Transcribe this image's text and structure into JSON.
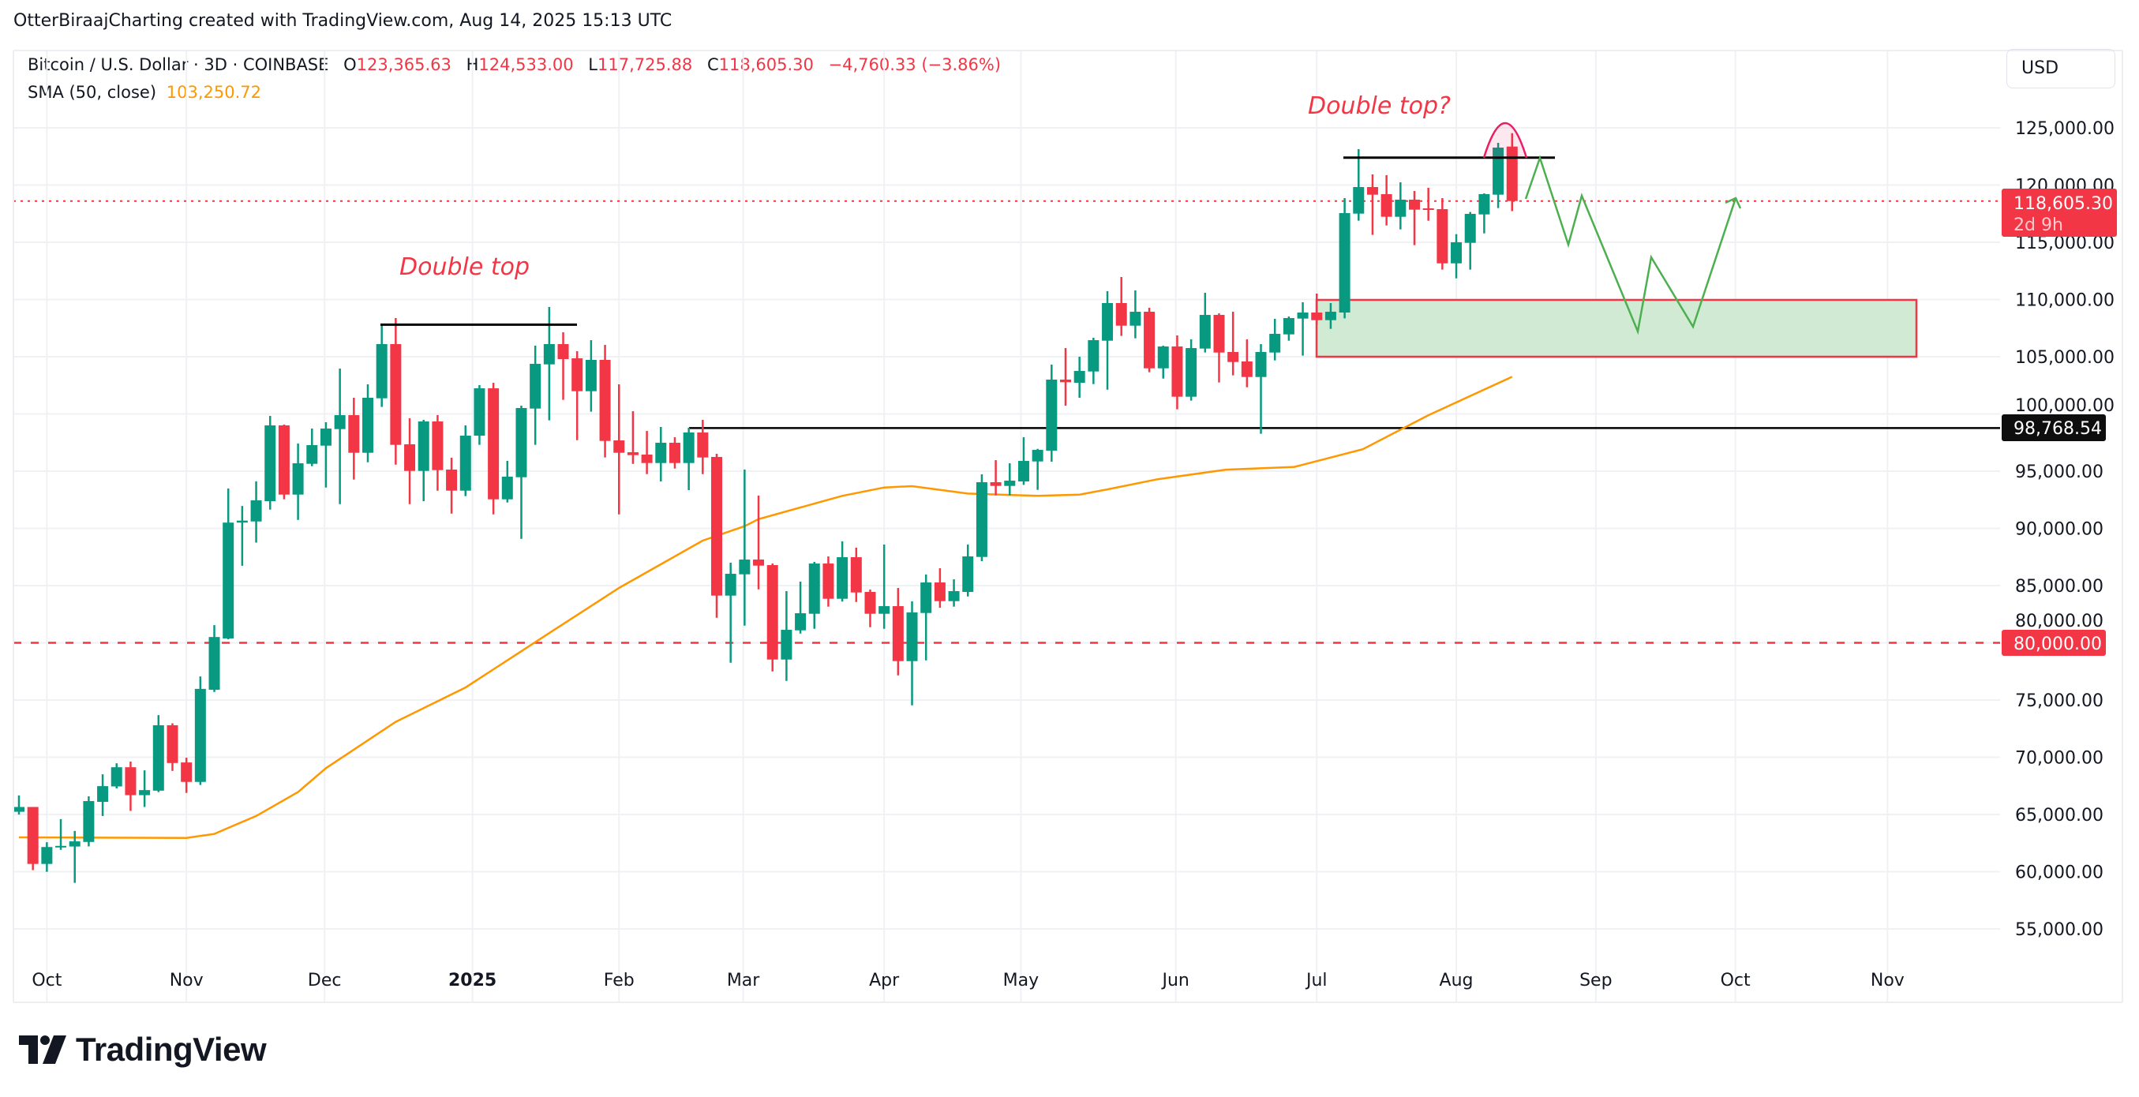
{
  "header": {
    "title": "OtterBiraajCharting created with TradingView.com, Aug 14, 2025 15:13 UTC",
    "symbol": "Bitcoin / U.S. Dollar · 3D · COINBASE",
    "open_label": "O",
    "open": "123,365.63",
    "high_label": "H",
    "high": "124,533.00",
    "low_label": "L",
    "low": "117,725.88",
    "close_label": "C",
    "close": "118,605.30",
    "change": "−4,760.33 (−3.86%)",
    "indicator": "SMA (50, close)",
    "indicator_value": "103,250.72"
  },
  "currency_button": "USD",
  "price_tags": {
    "current_price": "118,605.30",
    "countdown": "2d 9h",
    "support_level": "98,768.54",
    "level_80k": "80,000.00"
  },
  "annotations": {
    "left_label": "Double top",
    "right_label": "Double top?"
  },
  "logo": "TradingView",
  "colors": {
    "up": "#089981",
    "down": "#f23645",
    "sma": "#ff9800",
    "projection": "#4caf50",
    "zone_fill": "#d1ead3",
    "zone_border": "#f23645",
    "arc": "#e91e63"
  },
  "chart_data": {
    "type": "candlestick",
    "symbol": "BTC/USD",
    "interval": "3D",
    "ylim": [
      52000,
      128000
    ],
    "y_ticks": [
      "55,000.00",
      "60,000.00",
      "65,000.00",
      "70,000.00",
      "75,000.00",
      "80,000.00",
      "85,000.00",
      "90,000.00",
      "95,000.00",
      "100,000.00",
      "105,000.00",
      "110,000.00",
      "115,000.00",
      "120,000.00",
      "125,000.00"
    ],
    "y_tick_values": [
      55000,
      60000,
      65000,
      70000,
      75000,
      80000,
      85000,
      90000,
      95000,
      100000,
      105000,
      110000,
      115000,
      120000,
      125000
    ],
    "x_ticks": [
      {
        "label": "Oct",
        "bar": 2.0,
        "bold": false
      },
      {
        "label": "Nov",
        "bar": 12.0,
        "bold": false
      },
      {
        "label": "Dec",
        "bar": 21.9,
        "bold": false
      },
      {
        "label": "2025",
        "bar": 32.5,
        "bold": true
      },
      {
        "label": "Feb",
        "bar": 43.0,
        "bold": false
      },
      {
        "label": "Mar",
        "bar": 51.9,
        "bold": false
      },
      {
        "label": "Apr",
        "bar": 62.0,
        "bold": false
      },
      {
        "label": "May",
        "bar": 71.8,
        "bold": false
      },
      {
        "label": "Jun",
        "bar": 82.9,
        "bold": false
      },
      {
        "label": "Jul",
        "bar": 93.0,
        "bold": false
      },
      {
        "label": "Aug",
        "bar": 103.0,
        "bold": false
      },
      {
        "label": "Sep",
        "bar": 113.0,
        "bold": false
      },
      {
        "label": "Oct",
        "bar": 123.0,
        "bold": false
      },
      {
        "label": "Nov",
        "bar": 133.9,
        "bold": false
      }
    ],
    "ohlc_fields": [
      "open",
      "high",
      "low",
      "close"
    ],
    "candles": [
      [
        65235,
        66664,
        64989,
        65654
      ],
      [
        65654,
        65654,
        60136,
        60678
      ],
      [
        60678,
        62575,
        59989,
        62156
      ],
      [
        62156,
        64595,
        61910,
        62254
      ],
      [
        62200,
        63560,
        59029,
        62649
      ],
      [
        62600,
        66590,
        62205,
        66170
      ],
      [
        66100,
        68510,
        64866,
        67476
      ],
      [
        67450,
        69472,
        67280,
        69127
      ],
      [
        69127,
        69620,
        65310,
        66688
      ],
      [
        66688,
        68855,
        65654,
        67130
      ],
      [
        67080,
        73683,
        66960,
        72796
      ],
      [
        72796,
        72969,
        68806,
        69496
      ],
      [
        69545,
        69964,
        66885,
        67846
      ],
      [
        67846,
        77057,
        67575,
        75974
      ],
      [
        75900,
        81540,
        75703,
        80505
      ],
      [
        80382,
        93486,
        80308,
        90505
      ],
      [
        90505,
        91959,
        86737,
        90678
      ],
      [
        90604,
        94101,
        88757,
        92451
      ],
      [
        92378,
        99827,
        91642,
        98999
      ],
      [
        98999,
        99068,
        92539,
        92952
      ],
      [
        92952,
        97412,
        90745,
        95688
      ],
      [
        95642,
        98723,
        95435,
        97275
      ],
      [
        97229,
        99275,
        93573,
        98723
      ],
      [
        98677,
        103965,
        92125,
        99895
      ],
      [
        99895,
        101413,
        94263,
        96608
      ],
      [
        96608,
        102585,
        95780,
        101413
      ],
      [
        101367,
        107827,
        100608,
        106103
      ],
      [
        106103,
        108379,
        95573,
        97298
      ],
      [
        97344,
        99620,
        92125,
        95021
      ],
      [
        95021,
        99482,
        92378,
        99344
      ],
      [
        99344,
        99895,
        93297,
        95090
      ],
      [
        95137,
        96171,
        91297,
        93297
      ],
      [
        93297,
        98999,
        92815,
        98102
      ],
      [
        98102,
        102516,
        97298,
        102240
      ],
      [
        102240,
        102723,
        91228,
        92539
      ],
      [
        92539,
        95895,
        92263,
        94516
      ],
      [
        94470,
        100723,
        89090,
        100516
      ],
      [
        100470,
        105965,
        97298,
        104379
      ],
      [
        104333,
        109344,
        99436,
        106103
      ],
      [
        106103,
        107137,
        101229,
        104793
      ],
      [
        104861,
        105482,
        97711,
        101987
      ],
      [
        101987,
        106447,
        100194,
        104723
      ],
      [
        104723,
        106034,
        96194,
        97642
      ],
      [
        97688,
        102585,
        91228,
        96608
      ],
      [
        96654,
        100240,
        95642,
        96401
      ],
      [
        96447,
        98516,
        94745,
        95711
      ],
      [
        95711,
        98861,
        94102,
        97481
      ],
      [
        97481,
        97964,
        95228,
        95711
      ],
      [
        95711,
        98792,
        93343,
        98378
      ],
      [
        98378,
        99481,
        94745,
        96194
      ],
      [
        96240,
        96516,
        82193,
        84124
      ],
      [
        84124,
        86998,
        78262,
        86032
      ],
      [
        85987,
        95136,
        81504,
        87274
      ],
      [
        87274,
        92860,
        84676,
        86745
      ],
      [
        86791,
        86929,
        77503,
        78538
      ],
      [
        78538,
        84515,
        76676,
        81136
      ],
      [
        81090,
        85343,
        80814,
        82584
      ],
      [
        82538,
        87067,
        81228,
        86929
      ],
      [
        86929,
        87550,
        83159,
        83848
      ],
      [
        83848,
        88860,
        83600,
        87481
      ],
      [
        87481,
        88309,
        83573,
        84400
      ],
      [
        84446,
        84653,
        81366,
        82538
      ],
      [
        82538,
        88584,
        81227,
        83204
      ],
      [
        83204,
        84790,
        77158,
        78400
      ],
      [
        78400,
        83619,
        74537,
        82653
      ],
      [
        82607,
        85964,
        78469,
        85274
      ],
      [
        85274,
        86516,
        83067,
        83641
      ],
      [
        83641,
        85550,
        83159,
        84515
      ],
      [
        84446,
        88584,
        84055,
        87550
      ],
      [
        87504,
        94723,
        87136,
        94033
      ],
      [
        94033,
        95964,
        92883,
        93711
      ],
      [
        93711,
        95688,
        92883,
        94171
      ],
      [
        94102,
        97964,
        93800,
        95894
      ],
      [
        95849,
        96950,
        93366,
        96860
      ],
      [
        96792,
        104309,
        95826,
        103000
      ],
      [
        103000,
        105757,
        100723,
        102769
      ],
      [
        102723,
        105000,
        101413,
        103757
      ],
      [
        103711,
        106654,
        102608,
        106447
      ],
      [
        106401,
        110723,
        102125,
        109689
      ],
      [
        109689,
        111965,
        106815,
        107712
      ],
      [
        107712,
        110792,
        106608,
        108930
      ],
      [
        108930,
        109275,
        103643,
        103987
      ],
      [
        103987,
        105964,
        103091,
        105895
      ],
      [
        105895,
        106861,
        100401,
        101505
      ],
      [
        101505,
        106516,
        101160,
        105757
      ],
      [
        105712,
        110585,
        105367,
        108654
      ],
      [
        108654,
        108792,
        102746,
        105367
      ],
      [
        105413,
        108930,
        103367,
        104540
      ],
      [
        104585,
        106516,
        102332,
        103229
      ],
      [
        103229,
        106103,
        98263,
        105413
      ],
      [
        105367,
        108310,
        104677,
        106999
      ],
      [
        106953,
        108516,
        106401,
        108378
      ],
      [
        108333,
        109758,
        105091,
        108861
      ],
      [
        108861,
        110517,
        107800,
        108195
      ],
      [
        108195,
        109689,
        107436,
        108930
      ],
      [
        108861,
        118861,
        108355,
        117551
      ],
      [
        117505,
        123137,
        116884,
        119827
      ],
      [
        119827,
        120930,
        115643,
        119160
      ],
      [
        119206,
        120862,
        116471,
        117229
      ],
      [
        117229,
        120241,
        116126,
        118723
      ],
      [
        118723,
        119482,
        114747,
        117850
      ],
      [
        117965,
        119758,
        116884,
        117896
      ],
      [
        117896,
        118861,
        112608,
        113160
      ],
      [
        113160,
        115712,
        111850,
        115000
      ],
      [
        114953,
        117643,
        112608,
        117482
      ],
      [
        117436,
        119275,
        115781,
        119206
      ],
      [
        119160,
        123689,
        117988,
        123275
      ],
      [
        123365.63,
        124533.0,
        117725.88,
        118605.3
      ]
    ],
    "sma_50": [
      [
        0,
        63000
      ],
      [
        12,
        62950
      ],
      [
        14,
        63300
      ],
      [
        15,
        63830
      ],
      [
        17,
        64870
      ],
      [
        20,
        66960
      ],
      [
        22,
        69050
      ],
      [
        27,
        73100
      ],
      [
        32,
        76100
      ],
      [
        38,
        80850
      ],
      [
        43,
        84790
      ],
      [
        49,
        88930
      ],
      [
        52,
        90190
      ],
      [
        53,
        90810
      ],
      [
        59,
        92840
      ],
      [
        62,
        93570
      ],
      [
        64,
        93690
      ],
      [
        68,
        93040
      ],
      [
        73,
        92840
      ],
      [
        76,
        92950
      ],
      [
        78,
        93410
      ],
      [
        81.6,
        94300
      ],
      [
        86.5,
        95130
      ],
      [
        91.4,
        95370
      ],
      [
        96.3,
        96920
      ],
      [
        101,
        99890
      ],
      [
        107,
        103250.72
      ]
    ],
    "horizontal_levels": {
      "last_price": 118605.3,
      "support": 98768.54,
      "dashed": 80000
    },
    "double_top_levels": {
      "left": 107800,
      "right": 122400
    },
    "zone": {
      "top": 110000,
      "bottom": 105000
    },
    "grid": true
  }
}
